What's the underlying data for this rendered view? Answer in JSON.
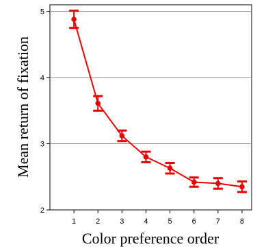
{
  "chart_data": {
    "type": "line",
    "xlabel": "Color preference order",
    "ylabel": "Mean return of fixation",
    "categories": [
      "1",
      "2",
      "3",
      "4",
      "5",
      "6",
      "7",
      "8"
    ],
    "x": [
      1,
      2,
      3,
      4,
      5,
      6,
      7,
      8
    ],
    "yticks": [
      "2",
      "3",
      "4",
      "5"
    ],
    "xlim": [
      0,
      8.4
    ],
    "ylim": [
      2,
      5.1
    ],
    "grid": "horizontal",
    "series": [
      {
        "values": [
          4.88,
          3.61,
          3.12,
          2.8,
          2.63,
          2.42,
          2.4,
          2.35
        ],
        "error_low": [
          4.75,
          3.5,
          3.04,
          2.72,
          2.55,
          2.35,
          2.32,
          2.27
        ],
        "error_high": [
          5.01,
          3.72,
          3.2,
          2.88,
          2.71,
          2.49,
          2.48,
          2.43
        ],
        "color": "#e60000"
      }
    ]
  }
}
